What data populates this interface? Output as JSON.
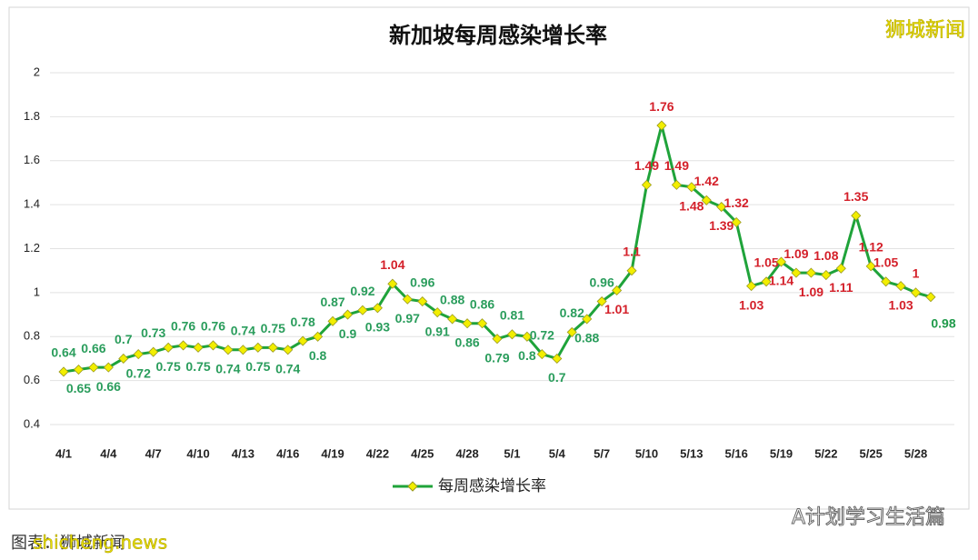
{
  "chart_data": {
    "type": "line",
    "title": "新加坡每周感染增长率",
    "categories": [
      "4/1",
      null,
      null,
      "4/4",
      null,
      null,
      "4/7",
      null,
      null,
      "4/10",
      null,
      null,
      "4/13",
      null,
      null,
      "4/16",
      null,
      null,
      "4/19",
      null,
      null,
      "4/22",
      null,
      null,
      "4/25",
      null,
      null,
      "4/28",
      null,
      null,
      "5/1",
      null,
      null,
      "5/4",
      null,
      null,
      "5/7",
      null,
      null,
      "5/10",
      null,
      null,
      "5/13",
      null,
      null,
      "5/16",
      null,
      null,
      "5/19",
      null,
      null,
      "5/22",
      null,
      null,
      "5/25",
      null,
      null,
      "5/28",
      null
    ],
    "series": [
      {
        "name": "每周感染增长率",
        "color": "#1fa33a",
        "values": [
          0.64,
          0.65,
          0.66,
          0.66,
          0.7,
          0.72,
          0.73,
          0.75,
          0.76,
          0.75,
          0.76,
          0.74,
          0.74,
          0.75,
          0.75,
          0.74,
          0.78,
          0.8,
          0.87,
          0.9,
          0.92,
          0.93,
          1.04,
          0.97,
          0.96,
          0.91,
          0.88,
          0.86,
          0.86,
          0.79,
          0.81,
          0.8,
          0.72,
          0.7,
          0.82,
          0.88,
          0.96,
          1.01,
          1.1,
          1.49,
          1.76,
          1.49,
          1.48,
          1.42,
          1.39,
          1.32,
          1.03,
          1.05,
          1.14,
          1.09,
          1.09,
          1.08,
          1.11,
          1.35,
          1.12,
          1.05,
          1.03,
          1,
          0.98
        ]
      }
    ],
    "ylim": [
      0.4,
      2
    ],
    "yticks": [
      0.4,
      0.6,
      0.8,
      1,
      1.2,
      1.4,
      1.6,
      1.8,
      2
    ],
    "grid": true,
    "legend": "bottom",
    "annotations": [
      "狮城新闻",
      "A计划学习生活篇",
      "图表：狮城新闻",
      "shicheng.news"
    ]
  }
}
